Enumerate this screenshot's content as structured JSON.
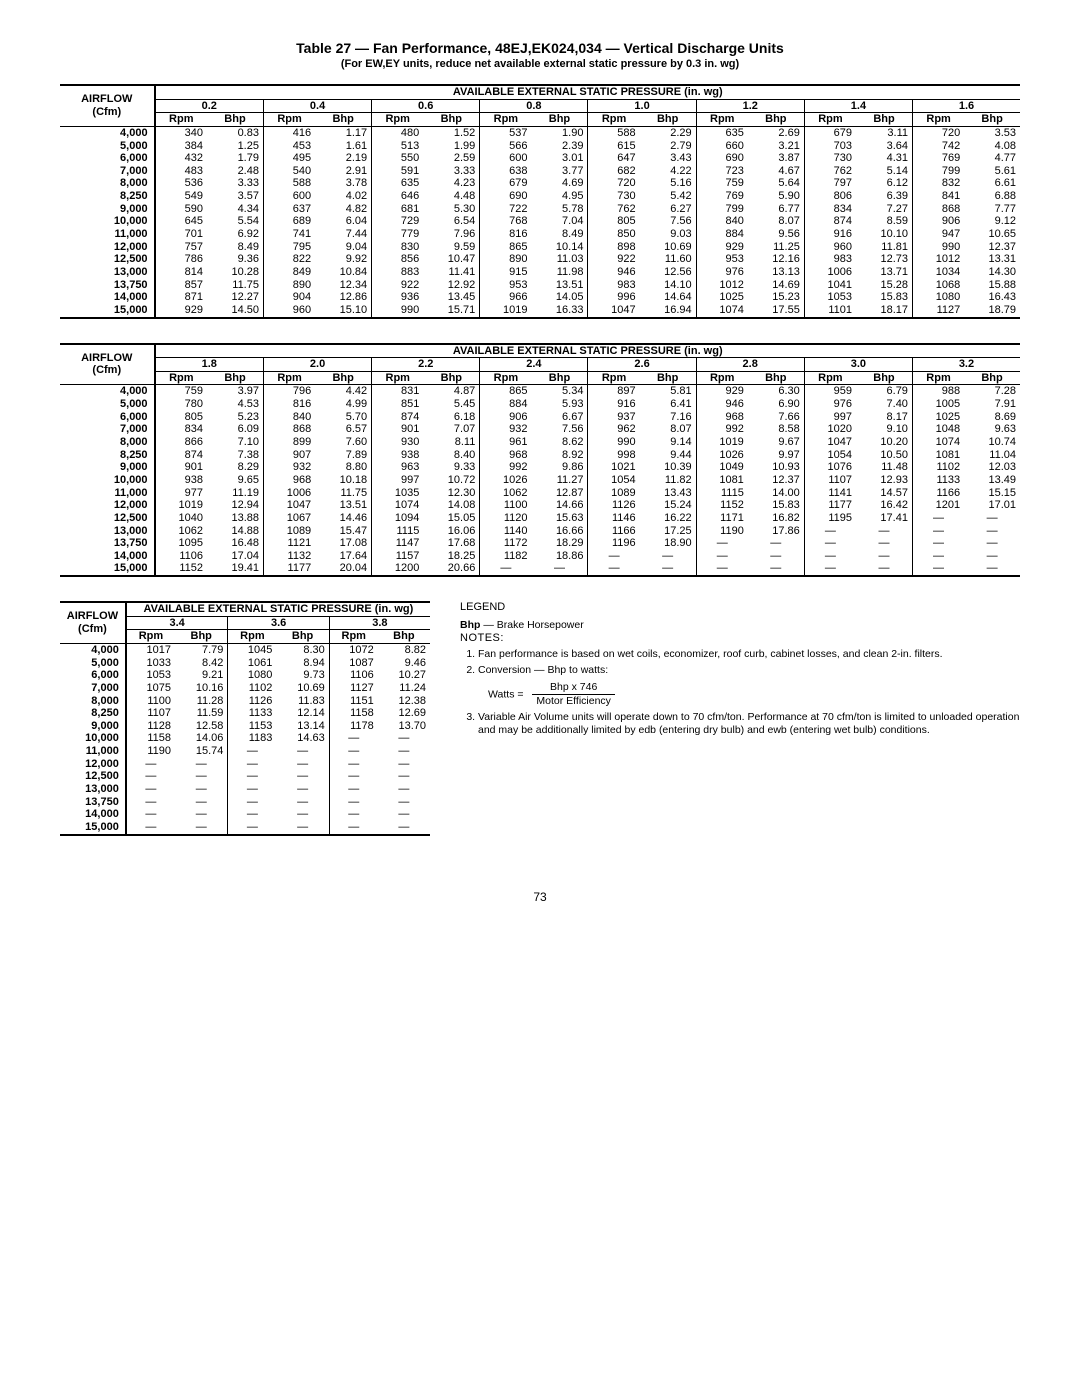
{
  "title": "Table 27 — Fan Performance, 48EJ,EK024,034 — Vertical Discharge Units",
  "subtitle": "(For EW,EY units, reduce net available external static pressure by 0.3 in. wg)",
  "avail_header": "AVAILABLE EXTERNAL STATIC PRESSURE (in. wg)",
  "airflow_label_1": "AIRFLOW",
  "airflow_label_2": "(Cfm)",
  "rpm_label": "Rpm",
  "bhp_label": "Bhp",
  "airflows": [
    "4,000",
    "5,000",
    "6,000",
    "7,000",
    "8,000",
    "8,250",
    "9,000",
    "10,000",
    "11,000",
    "12,000",
    "12,500",
    "13,000",
    "13,750",
    "14,000",
    "15,000"
  ],
  "table1": {
    "pressures": [
      "0.2",
      "0.4",
      "0.6",
      "0.8",
      "1.0",
      "1.2",
      "1.4",
      "1.6"
    ],
    "rows": [
      [
        [
          "340",
          "0.83"
        ],
        [
          "416",
          "1.17"
        ],
        [
          "480",
          "1.52"
        ],
        [
          "537",
          "1.90"
        ],
        [
          "588",
          "2.29"
        ],
        [
          "635",
          "2.69"
        ],
        [
          "679",
          "3.11"
        ],
        [
          "720",
          "3.53"
        ]
      ],
      [
        [
          "384",
          "1.25"
        ],
        [
          "453",
          "1.61"
        ],
        [
          "513",
          "1.99"
        ],
        [
          "566",
          "2.39"
        ],
        [
          "615",
          "2.79"
        ],
        [
          "660",
          "3.21"
        ],
        [
          "703",
          "3.64"
        ],
        [
          "742",
          "4.08"
        ]
      ],
      [
        [
          "432",
          "1.79"
        ],
        [
          "495",
          "2.19"
        ],
        [
          "550",
          "2.59"
        ],
        [
          "600",
          "3.01"
        ],
        [
          "647",
          "3.43"
        ],
        [
          "690",
          "3.87"
        ],
        [
          "730",
          "4.31"
        ],
        [
          "769",
          "4.77"
        ]
      ],
      [
        [
          "483",
          "2.48"
        ],
        [
          "540",
          "2.91"
        ],
        [
          "591",
          "3.33"
        ],
        [
          "638",
          "3.77"
        ],
        [
          "682",
          "4.22"
        ],
        [
          "723",
          "4.67"
        ],
        [
          "762",
          "5.14"
        ],
        [
          "799",
          "5.61"
        ]
      ],
      [
        [
          "536",
          "3.33"
        ],
        [
          "588",
          "3.78"
        ],
        [
          "635",
          "4.23"
        ],
        [
          "679",
          "4.69"
        ],
        [
          "720",
          "5.16"
        ],
        [
          "759",
          "5.64"
        ],
        [
          "797",
          "6.12"
        ],
        [
          "832",
          "6.61"
        ]
      ],
      [
        [
          "549",
          "3.57"
        ],
        [
          "600",
          "4.02"
        ],
        [
          "646",
          "4.48"
        ],
        [
          "690",
          "4.95"
        ],
        [
          "730",
          "5.42"
        ],
        [
          "769",
          "5.90"
        ],
        [
          "806",
          "6.39"
        ],
        [
          "841",
          "6.88"
        ]
      ],
      [
        [
          "590",
          "4.34"
        ],
        [
          "637",
          "4.82"
        ],
        [
          "681",
          "5.30"
        ],
        [
          "722",
          "5.78"
        ],
        [
          "762",
          "6.27"
        ],
        [
          "799",
          "6.77"
        ],
        [
          "834",
          "7.27"
        ],
        [
          "868",
          "7.77"
        ]
      ],
      [
        [
          "645",
          "5.54"
        ],
        [
          "689",
          "6.04"
        ],
        [
          "729",
          "6.54"
        ],
        [
          "768",
          "7.04"
        ],
        [
          "805",
          "7.56"
        ],
        [
          "840",
          "8.07"
        ],
        [
          "874",
          "8.59"
        ],
        [
          "906",
          "9.12"
        ]
      ],
      [
        [
          "701",
          "6.92"
        ],
        [
          "741",
          "7.44"
        ],
        [
          "779",
          "7.96"
        ],
        [
          "816",
          "8.49"
        ],
        [
          "850",
          "9.03"
        ],
        [
          "884",
          "9.56"
        ],
        [
          "916",
          "10.10"
        ],
        [
          "947",
          "10.65"
        ]
      ],
      [
        [
          "757",
          "8.49"
        ],
        [
          "795",
          "9.04"
        ],
        [
          "830",
          "9.59"
        ],
        [
          "865",
          "10.14"
        ],
        [
          "898",
          "10.69"
        ],
        [
          "929",
          "11.25"
        ],
        [
          "960",
          "11.81"
        ],
        [
          "990",
          "12.37"
        ]
      ],
      [
        [
          "786",
          "9.36"
        ],
        [
          "822",
          "9.92"
        ],
        [
          "856",
          "10.47"
        ],
        [
          "890",
          "11.03"
        ],
        [
          "922",
          "11.60"
        ],
        [
          "953",
          "12.16"
        ],
        [
          "983",
          "12.73"
        ],
        [
          "1012",
          "13.31"
        ]
      ],
      [
        [
          "814",
          "10.28"
        ],
        [
          "849",
          "10.84"
        ],
        [
          "883",
          "11.41"
        ],
        [
          "915",
          "11.98"
        ],
        [
          "946",
          "12.56"
        ],
        [
          "976",
          "13.13"
        ],
        [
          "1006",
          "13.71"
        ],
        [
          "1034",
          "14.30"
        ]
      ],
      [
        [
          "857",
          "11.75"
        ],
        [
          "890",
          "12.34"
        ],
        [
          "922",
          "12.92"
        ],
        [
          "953",
          "13.51"
        ],
        [
          "983",
          "14.10"
        ],
        [
          "1012",
          "14.69"
        ],
        [
          "1041",
          "15.28"
        ],
        [
          "1068",
          "15.88"
        ]
      ],
      [
        [
          "871",
          "12.27"
        ],
        [
          "904",
          "12.86"
        ],
        [
          "936",
          "13.45"
        ],
        [
          "966",
          "14.05"
        ],
        [
          "996",
          "14.64"
        ],
        [
          "1025",
          "15.23"
        ],
        [
          "1053",
          "15.83"
        ],
        [
          "1080",
          "16.43"
        ]
      ],
      [
        [
          "929",
          "14.50"
        ],
        [
          "960",
          "15.10"
        ],
        [
          "990",
          "15.71"
        ],
        [
          "1019",
          "16.33"
        ],
        [
          "1047",
          "16.94"
        ],
        [
          "1074",
          "17.55"
        ],
        [
          "1101",
          "18.17"
        ],
        [
          "1127",
          "18.79"
        ]
      ]
    ]
  },
  "table2": {
    "pressures": [
      "1.8",
      "2.0",
      "2.2",
      "2.4",
      "2.6",
      "2.8",
      "3.0",
      "3.2"
    ],
    "rows": [
      [
        [
          "759",
          "3.97"
        ],
        [
          "796",
          "4.42"
        ],
        [
          "831",
          "4.87"
        ],
        [
          "865",
          "5.34"
        ],
        [
          "897",
          "5.81"
        ],
        [
          "929",
          "6.30"
        ],
        [
          "959",
          "6.79"
        ],
        [
          "988",
          "7.28"
        ]
      ],
      [
        [
          "780",
          "4.53"
        ],
        [
          "816",
          "4.99"
        ],
        [
          "851",
          "5.45"
        ],
        [
          "884",
          "5.93"
        ],
        [
          "916",
          "6.41"
        ],
        [
          "946",
          "6.90"
        ],
        [
          "976",
          "7.40"
        ],
        [
          "1005",
          "7.91"
        ]
      ],
      [
        [
          "805",
          "5.23"
        ],
        [
          "840",
          "5.70"
        ],
        [
          "874",
          "6.18"
        ],
        [
          "906",
          "6.67"
        ],
        [
          "937",
          "7.16"
        ],
        [
          "968",
          "7.66"
        ],
        [
          "997",
          "8.17"
        ],
        [
          "1025",
          "8.69"
        ]
      ],
      [
        [
          "834",
          "6.09"
        ],
        [
          "868",
          "6.57"
        ],
        [
          "901",
          "7.07"
        ],
        [
          "932",
          "7.56"
        ],
        [
          "962",
          "8.07"
        ],
        [
          "992",
          "8.58"
        ],
        [
          "1020",
          "9.10"
        ],
        [
          "1048",
          "9.63"
        ]
      ],
      [
        [
          "866",
          "7.10"
        ],
        [
          "899",
          "7.60"
        ],
        [
          "930",
          "8.11"
        ],
        [
          "961",
          "8.62"
        ],
        [
          "990",
          "9.14"
        ],
        [
          "1019",
          "9.67"
        ],
        [
          "1047",
          "10.20"
        ],
        [
          "1074",
          "10.74"
        ]
      ],
      [
        [
          "874",
          "7.38"
        ],
        [
          "907",
          "7.89"
        ],
        [
          "938",
          "8.40"
        ],
        [
          "968",
          "8.92"
        ],
        [
          "998",
          "9.44"
        ],
        [
          "1026",
          "9.97"
        ],
        [
          "1054",
          "10.50"
        ],
        [
          "1081",
          "11.04"
        ]
      ],
      [
        [
          "901",
          "8.29"
        ],
        [
          "932",
          "8.80"
        ],
        [
          "963",
          "9.33"
        ],
        [
          "992",
          "9.86"
        ],
        [
          "1021",
          "10.39"
        ],
        [
          "1049",
          "10.93"
        ],
        [
          "1076",
          "11.48"
        ],
        [
          "1102",
          "12.03"
        ]
      ],
      [
        [
          "938",
          "9.65"
        ],
        [
          "968",
          "10.18"
        ],
        [
          "997",
          "10.72"
        ],
        [
          "1026",
          "11.27"
        ],
        [
          "1054",
          "11.82"
        ],
        [
          "1081",
          "12.37"
        ],
        [
          "1107",
          "12.93"
        ],
        [
          "1133",
          "13.49"
        ]
      ],
      [
        [
          "977",
          "11.19"
        ],
        [
          "1006",
          "11.75"
        ],
        [
          "1035",
          "12.30"
        ],
        [
          "1062",
          "12.87"
        ],
        [
          "1089",
          "13.43"
        ],
        [
          "1115",
          "14.00"
        ],
        [
          "1141",
          "14.57"
        ],
        [
          "1166",
          "15.15"
        ]
      ],
      [
        [
          "1019",
          "12.94"
        ],
        [
          "1047",
          "13.51"
        ],
        [
          "1074",
          "14.08"
        ],
        [
          "1100",
          "14.66"
        ],
        [
          "1126",
          "15.24"
        ],
        [
          "1152",
          "15.83"
        ],
        [
          "1177",
          "16.42"
        ],
        [
          "1201",
          "17.01"
        ]
      ],
      [
        [
          "1040",
          "13.88"
        ],
        [
          "1067",
          "14.46"
        ],
        [
          "1094",
          "15.05"
        ],
        [
          "1120",
          "15.63"
        ],
        [
          "1146",
          "16.22"
        ],
        [
          "1171",
          "16.82"
        ],
        [
          "1195",
          "17.41"
        ],
        [
          "—",
          "—"
        ]
      ],
      [
        [
          "1062",
          "14.88"
        ],
        [
          "1089",
          "15.47"
        ],
        [
          "1115",
          "16.06"
        ],
        [
          "1140",
          "16.66"
        ],
        [
          "1166",
          "17.25"
        ],
        [
          "1190",
          "17.86"
        ],
        [
          "—",
          "—"
        ],
        [
          "—",
          "—"
        ]
      ],
      [
        [
          "1095",
          "16.48"
        ],
        [
          "1121",
          "17.08"
        ],
        [
          "1147",
          "17.68"
        ],
        [
          "1172",
          "18.29"
        ],
        [
          "1196",
          "18.90"
        ],
        [
          "—",
          "—"
        ],
        [
          "—",
          "—"
        ],
        [
          "—",
          "—"
        ]
      ],
      [
        [
          "1106",
          "17.04"
        ],
        [
          "1132",
          "17.64"
        ],
        [
          "1157",
          "18.25"
        ],
        [
          "1182",
          "18.86"
        ],
        [
          "—",
          "—"
        ],
        [
          "—",
          "—"
        ],
        [
          "—",
          "—"
        ],
        [
          "—",
          "—"
        ]
      ],
      [
        [
          "1152",
          "19.41"
        ],
        [
          "1177",
          "20.04"
        ],
        [
          "1200",
          "20.66"
        ],
        [
          "—",
          "—"
        ],
        [
          "—",
          "—"
        ],
        [
          "—",
          "—"
        ],
        [
          "—",
          "—"
        ],
        [
          "—",
          "—"
        ]
      ]
    ]
  },
  "table3": {
    "pressures": [
      "3.4",
      "3.6",
      "3.8"
    ],
    "rows": [
      [
        [
          "1017",
          "7.79"
        ],
        [
          "1045",
          "8.30"
        ],
        [
          "1072",
          "8.82"
        ]
      ],
      [
        [
          "1033",
          "8.42"
        ],
        [
          "1061",
          "8.94"
        ],
        [
          "1087",
          "9.46"
        ]
      ],
      [
        [
          "1053",
          "9.21"
        ],
        [
          "1080",
          "9.73"
        ],
        [
          "1106",
          "10.27"
        ]
      ],
      [
        [
          "1075",
          "10.16"
        ],
        [
          "1102",
          "10.69"
        ],
        [
          "1127",
          "11.24"
        ]
      ],
      [
        [
          "1100",
          "11.28"
        ],
        [
          "1126",
          "11.83"
        ],
        [
          "1151",
          "12.38"
        ]
      ],
      [
        [
          "1107",
          "11.59"
        ],
        [
          "1133",
          "12.14"
        ],
        [
          "1158",
          "12.69"
        ]
      ],
      [
        [
          "1128",
          "12.58"
        ],
        [
          "1153",
          "13.14"
        ],
        [
          "1178",
          "13.70"
        ]
      ],
      [
        [
          "1158",
          "14.06"
        ],
        [
          "1183",
          "14.63"
        ],
        [
          "—",
          "—"
        ]
      ],
      [
        [
          "1190",
          "15.74"
        ],
        [
          "—",
          "—"
        ],
        [
          "—",
          "—"
        ]
      ],
      [
        [
          "—",
          "—"
        ],
        [
          "—",
          "—"
        ],
        [
          "—",
          "—"
        ]
      ],
      [
        [
          "—",
          "—"
        ],
        [
          "—",
          "—"
        ],
        [
          "—",
          "—"
        ]
      ],
      [
        [
          "—",
          "—"
        ],
        [
          "—",
          "—"
        ],
        [
          "—",
          "—"
        ]
      ],
      [
        [
          "—",
          "—"
        ],
        [
          "—",
          "—"
        ],
        [
          "—",
          "—"
        ]
      ],
      [
        [
          "—",
          "—"
        ],
        [
          "—",
          "—"
        ],
        [
          "—",
          "—"
        ]
      ],
      [
        [
          "—",
          "—"
        ],
        [
          "—",
          "—"
        ],
        [
          "—",
          "—"
        ]
      ]
    ]
  },
  "legend_title": "LEGEND",
  "legend_bhp": "Bhp",
  "legend_bhp_def": " — Brake Horsepower",
  "notes_title": "NOTES:",
  "note1": "Fan performance is based on wet coils, economizer, roof curb, cabinet losses, and clean 2-in. filters.",
  "note2": "Conversion — Bhp to watts:",
  "watts_label": "Watts =",
  "formula_num": "Bhp x 746",
  "formula_den": "Motor Efficiency",
  "note3": "Variable Air Volume units will operate down to 70 cfm/ton. Performance at 70 cfm/ton is limited to unloaded operation and may be additionally limited by edb (entering dry bulb) and ewb (entering wet bulb) conditions.",
  "page_number": "73"
}
